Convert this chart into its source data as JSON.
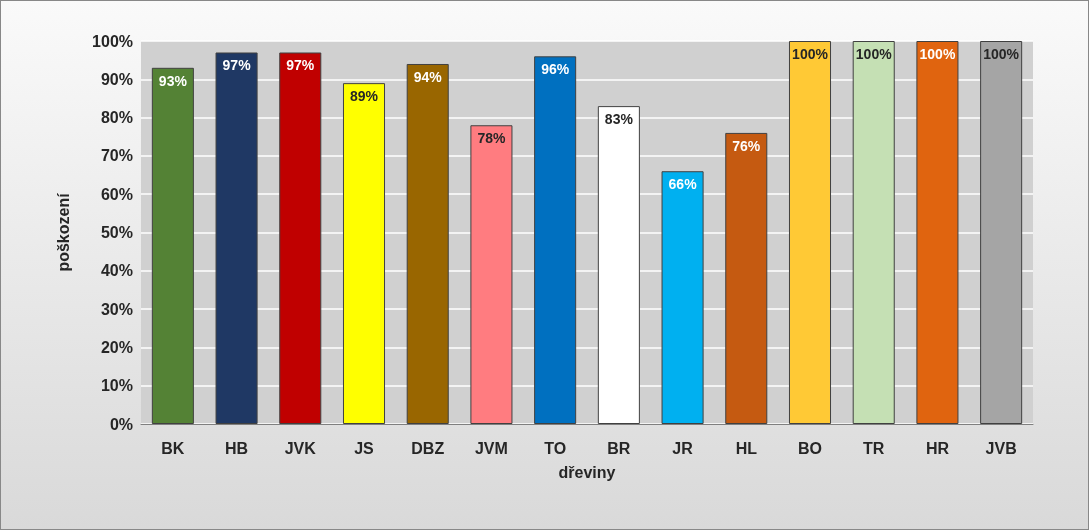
{
  "chart_data": {
    "type": "bar",
    "xlabel": "dřeviny",
    "ylabel": "poškození",
    "categories": [
      "BK",
      "HB",
      "JVK",
      "JS",
      "DBZ",
      "JVM",
      "TO",
      "BR",
      "JR",
      "HL",
      "BO",
      "TR",
      "HR",
      "JVB"
    ],
    "values": [
      93,
      97,
      97,
      89,
      94,
      78,
      96,
      83,
      66,
      76,
      100,
      100,
      100,
      100
    ],
    "value_labels": [
      "93%",
      "97%",
      "97%",
      "89%",
      "94%",
      "78%",
      "96%",
      "83%",
      "66%",
      "76%",
      "100%",
      "100%",
      "100%",
      "100%"
    ],
    "colors": [
      "#548235",
      "#1f3864",
      "#c00000",
      "#ffff00",
      "#996600",
      "#ff7c80",
      "#0070c0",
      "#ffffff",
      "#00b0f0",
      "#c55a11",
      "#ffc935",
      "#c5e0b4",
      "#e0640f",
      "#a5a5a5"
    ],
    "ylim": [
      0,
      100
    ],
    "yticks": [
      {
        "value": 0,
        "label": "0%"
      },
      {
        "value": 10,
        "label": "10%"
      },
      {
        "value": 20,
        "label": "20%"
      },
      {
        "value": 30,
        "label": "30%"
      },
      {
        "value": 40,
        "label": "40%"
      },
      {
        "value": 50,
        "label": "50%"
      },
      {
        "value": 60,
        "label": "60%"
      },
      {
        "value": 70,
        "label": "70%"
      },
      {
        "value": 80,
        "label": "80%"
      },
      {
        "value": 90,
        "label": "90%"
      },
      {
        "value": 100,
        "label": "100%"
      }
    ],
    "grid": "y"
  }
}
